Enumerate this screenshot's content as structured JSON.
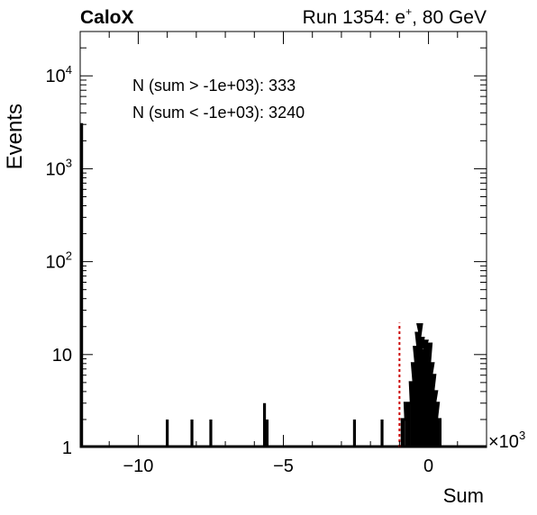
{
  "header": {
    "experiment": "CaloX",
    "run_label": "Run 1354: e",
    "run_sup": "+",
    "run_energy": ", 80 GeV"
  },
  "annotations": [
    "N (sum > -1e+03): 333",
    "N (sum < -1e+03): 3240"
  ],
  "chart_data": {
    "type": "histogram",
    "xlabel": "Sum",
    "ylabel": "Events",
    "x_multiplier": "×10",
    "x_multiplier_exp": "3",
    "xlim": [
      -12000,
      2000
    ],
    "ylim": [
      1,
      30000
    ],
    "log_y": true,
    "grid": false,
    "x_ticks": [
      {
        "value": -10000,
        "label": "−10"
      },
      {
        "value": -5000,
        "label": "−5"
      },
      {
        "value": 0,
        "label": "0"
      }
    ],
    "y_ticks": [
      {
        "value": 1,
        "base": "1",
        "exp": ""
      },
      {
        "value": 10,
        "base": "10",
        "exp": ""
      },
      {
        "value": 100,
        "base": "10",
        "exp": "2"
      },
      {
        "value": 1000,
        "base": "10",
        "exp": "3"
      },
      {
        "value": 10000,
        "base": "10",
        "exp": "4"
      }
    ],
    "bins": [
      {
        "x": -11950,
        "y": 3100
      },
      {
        "x": -9000,
        "y": 2
      },
      {
        "x": -8150,
        "y": 2
      },
      {
        "x": -7500,
        "y": 2
      },
      {
        "x": -5650,
        "y": 3
      },
      {
        "x": -5560,
        "y": 2
      },
      {
        "x": -2550,
        "y": 2
      },
      {
        "x": -1600,
        "y": 2
      },
      {
        "x": -850,
        "y": 2
      },
      {
        "x": -750,
        "y": 3
      },
      {
        "x": -660,
        "y": 3
      },
      {
        "x": -570,
        "y": 5
      },
      {
        "x": -500,
        "y": 8
      },
      {
        "x": -430,
        "y": 12
      },
      {
        "x": -360,
        "y": 17
      },
      {
        "x": -300,
        "y": 21
      },
      {
        "x": -240,
        "y": 15
      },
      {
        "x": -180,
        "y": 11
      },
      {
        "x": -110,
        "y": 14
      },
      {
        "x": -40,
        "y": 12
      },
      {
        "x": 30,
        "y": 13
      },
      {
        "x": 100,
        "y": 8
      },
      {
        "x": 160,
        "y": 6
      },
      {
        "x": 220,
        "y": 4
      },
      {
        "x": 280,
        "y": 3
      },
      {
        "x": 340,
        "y": 2
      }
    ],
    "threshold_line": {
      "x": -1000,
      "y_top": 22,
      "color": "#cc0000"
    },
    "colors": {
      "histogram": "#000000",
      "threshold": "#cc0000"
    }
  }
}
